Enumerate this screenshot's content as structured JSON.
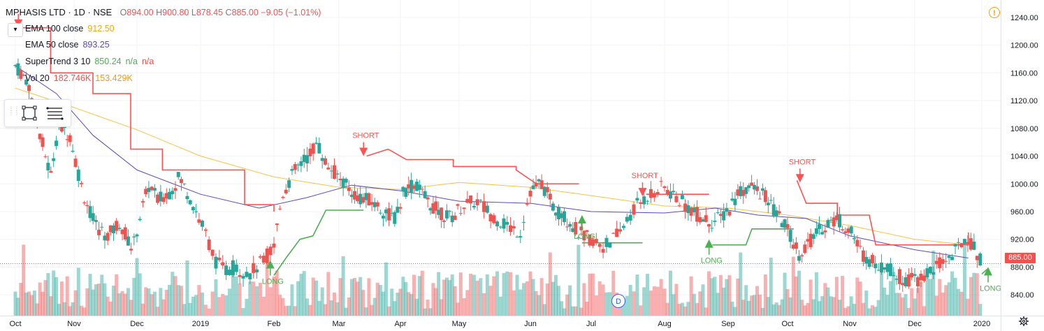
{
  "header": {
    "symbol": "MPHASIS LTD · 1D · NSE",
    "ohlc": [
      {
        "label": "O",
        "value": "894.00"
      },
      {
        "label": "H",
        "value": "900.80"
      },
      {
        "label": "L",
        "value": "878.45"
      },
      {
        "label": "C",
        "value": "885.00"
      }
    ],
    "change": "−9.05 (−1.01%)",
    "collapse_glyph": "▾",
    "warning_glyph": "!"
  },
  "indicators": [
    {
      "name": "EMA 100 close",
      "value": "912.50",
      "color": "#f7c344"
    },
    {
      "name": "EMA 50 close",
      "value": "893.25",
      "color": "#5b4bb7"
    },
    {
      "name": "SuperTrend 3 10",
      "value": "850.24",
      "extra": "n/a",
      "extra2": "n/a",
      "color": "#4caf50",
      "extra_color": "#ef5350"
    },
    {
      "name": "Vol 20",
      "value": "182.746K",
      "extra": "153.429K",
      "color": "#ef5350",
      "extra_color": "#ff9800"
    }
  ],
  "price_tag": "885.00",
  "event_marker": "D",
  "colors": {
    "up": "#26a69a",
    "down": "#ef5350",
    "grid": "#f0f3fa",
    "st_up": "#4caf50",
    "st_down": "#ff5252"
  },
  "chart_data": {
    "type": "candlestick",
    "y_axis": {
      "range": [
        810,
        1265
      ],
      "ticks": [
        "840.00",
        "880.00",
        "920.00",
        "960.00",
        "1000.00",
        "1040.00",
        "1080.00",
        "1120.00",
        "1160.00",
        "1200.00",
        "1240.00"
      ]
    },
    "x_axis": {
      "labels": [
        "Oct",
        "Nov",
        "Dec",
        "2019",
        "Feb",
        "Mar",
        "Apr",
        "May",
        "Jun",
        "Jul",
        "Aug",
        "Sep",
        "Oct",
        "Nov",
        "Dec",
        "2020"
      ]
    },
    "last_close": 885.0,
    "signals": [
      {
        "label": "SHORT",
        "type": "short",
        "month": 5.4,
        "price": 1040
      },
      {
        "label": "SHORT",
        "type": "short",
        "month": 9.7,
        "price": 982
      },
      {
        "label": "SHORT",
        "type": "short",
        "month": 12.2,
        "price": 1002
      },
      {
        "label": "LONG",
        "type": "long",
        "month": 3.95,
        "price": 890
      },
      {
        "label": "LONG",
        "type": "long",
        "month": 8.85,
        "price": 955
      },
      {
        "label": "LONG",
        "type": "long",
        "month": 10.7,
        "price": 920
      },
      {
        "label": "LONG",
        "type": "long",
        "month": 15.1,
        "price": 880
      },
      {
        "label": "SHORT",
        "type": "short",
        "month": 0.05,
        "price": 1225
      }
    ],
    "close_path": [
      [
        0.0,
        1170
      ],
      [
        0.3,
        1150
      ],
      [
        0.6,
        1080
      ],
      [
        0.9,
        1010
      ],
      [
        1.1,
        1085
      ],
      [
        1.4,
        1070
      ],
      [
        1.7,
        990
      ],
      [
        2.0,
        940
      ],
      [
        2.3,
        925
      ],
      [
        2.6,
        945
      ],
      [
        2.9,
        905
      ],
      [
        3.1,
        960
      ],
      [
        3.3,
        1000
      ],
      [
        3.5,
        975
      ],
      [
        3.8,
        990
      ],
      [
        4.0,
        1010
      ],
      [
        4.3,
        975
      ],
      [
        4.6,
        930
      ],
      [
        4.8,
        890
      ],
      [
        5.0,
        875
      ],
      [
        5.2,
        880
      ],
      [
        5.5,
        870
      ],
      [
        5.8,
        890
      ],
      [
        6.0,
        910
      ],
      [
        6.2,
        985
      ],
      [
        6.5,
        1020
      ],
      [
        6.8,
        1040
      ],
      [
        7.0,
        1060
      ],
      [
        7.2,
        1030
      ],
      [
        7.5,
        1010
      ],
      [
        7.8,
        990
      ],
      [
        8.0,
        980
      ],
      [
        8.3,
        975
      ],
      [
        8.6,
        960
      ],
      [
        8.9,
        950
      ],
      [
        9.1,
        990
      ],
      [
        9.4,
        1000
      ],
      [
        9.7,
        975
      ],
      [
        10.0,
        960
      ],
      [
        10.3,
        950
      ],
      [
        10.6,
        970
      ],
      [
        10.9,
        975
      ],
      [
        11.2,
        955
      ],
      [
        11.5,
        940
      ],
      [
        11.8,
        930
      ],
      [
        12.0,
        990
      ],
      [
        12.3,
        1000
      ],
      [
        12.6,
        965
      ],
      [
        12.9,
        950
      ],
      [
        13.2,
        930
      ],
      [
        13.5,
        920
      ],
      [
        13.8,
        910
      ],
      [
        14.1,
        930
      ],
      [
        14.4,
        965
      ],
      [
        14.7,
        985
      ],
      [
        15.0,
        995
      ],
      [
        15.3,
        980
      ],
      [
        15.6,
        965
      ],
      [
        15.9,
        950
      ],
      [
        16.2,
        945
      ],
      [
        16.5,
        960
      ],
      [
        16.8,
        990
      ],
      [
        17.1,
        995
      ],
      [
        17.4,
        985
      ],
      [
        17.7,
        960
      ],
      [
        18.0,
        935
      ],
      [
        18.3,
        900
      ],
      [
        18.6,
        920
      ],
      [
        18.9,
        940
      ],
      [
        19.2,
        950
      ],
      [
        19.5,
        935
      ],
      [
        19.8,
        900
      ],
      [
        20.1,
        885
      ],
      [
        20.4,
        880
      ],
      [
        20.7,
        865
      ],
      [
        21.0,
        860
      ],
      [
        21.3,
        870
      ],
      [
        21.6,
        885
      ],
      [
        21.9,
        900
      ],
      [
        22.2,
        925
      ],
      [
        22.4,
        900
      ],
      [
        22.6,
        885
      ]
    ],
    "supertrend": [
      {
        "color": "down",
        "points": [
          [
            0.0,
            1225
          ],
          [
            0.6,
            1225
          ],
          [
            0.6,
            1160
          ],
          [
            1.3,
            1160
          ],
          [
            1.3,
            1130
          ],
          [
            1.9,
            1130
          ],
          [
            1.9,
            1050
          ],
          [
            2.4,
            1050
          ],
          [
            2.4,
            1020
          ],
          [
            3.6,
            1020
          ],
          [
            3.6,
            970
          ],
          [
            4.0,
            970
          ],
          [
            4.0,
            960
          ]
        ]
      },
      {
        "color": "up",
        "points": [
          [
            4.0,
            868
          ],
          [
            4.2,
            895
          ],
          [
            4.4,
            920
          ],
          [
            4.6,
            925
          ],
          [
            4.8,
            962
          ],
          [
            5.4,
            962
          ],
          [
            5.4,
            962
          ]
        ]
      },
      {
        "color": "down",
        "points": [
          [
            5.45,
            1040
          ],
          [
            5.8,
            1050
          ],
          [
            6.1,
            1035
          ],
          [
            6.9,
            1035
          ],
          [
            6.9,
            1025
          ],
          [
            7.8,
            1025
          ],
          [
            7.8,
            1020
          ],
          [
            8.1,
            1000
          ],
          [
            8.8,
            1000
          ]
        ]
      },
      {
        "color": "up",
        "points": [
          [
            8.85,
            915
          ],
          [
            9.7,
            915
          ]
        ]
      },
      {
        "color": "down",
        "points": [
          [
            9.75,
            985
          ],
          [
            10.7,
            985
          ]
        ]
      },
      {
        "color": "up",
        "points": [
          [
            10.75,
            912
          ],
          [
            11.3,
            912
          ],
          [
            11.4,
            935
          ],
          [
            12.1,
            935
          ],
          [
            12.1,
            935
          ]
        ]
      },
      {
        "color": "down",
        "points": [
          [
            12.15,
            1005
          ],
          [
            12.3,
            972
          ],
          [
            12.8,
            972
          ],
          [
            12.8,
            955
          ],
          [
            13.3,
            955
          ],
          [
            13.4,
            912
          ],
          [
            14.8,
            912
          ],
          [
            14.8,
            930
          ]
        ]
      },
      {
        "color": "up",
        "points": [
          [
            15.0,
            870
          ],
          [
            15.1,
            878
          ]
        ]
      }
    ],
    "ema100": [
      [
        0.0,
        1138
      ],
      [
        1.0,
        1110
      ],
      [
        2.0,
        1078
      ],
      [
        3.0,
        1040
      ],
      [
        4.0,
        1010
      ],
      [
        5.0,
        995
      ],
      [
        6.0,
        992
      ],
      [
        7.0,
        1002
      ],
      [
        8.0,
        995
      ],
      [
        9.0,
        983
      ],
      [
        10.0,
        968
      ],
      [
        11.0,
        965
      ],
      [
        12.0,
        955
      ],
      [
        13.0,
        940
      ],
      [
        14.0,
        920
      ],
      [
        14.8,
        912
      ]
    ],
    "ema50": [
      [
        0.0,
        1170
      ],
      [
        0.7,
        1130
      ],
      [
        1.3,
        1070
      ],
      [
        2.0,
        1020
      ],
      [
        3.0,
        985
      ],
      [
        3.8,
        965
      ],
      [
        4.5,
        980
      ],
      [
        5.2,
        998
      ],
      [
        6.0,
        990
      ],
      [
        7.0,
        975
      ],
      [
        8.0,
        972
      ],
      [
        9.0,
        960
      ],
      [
        10.0,
        958
      ],
      [
        10.8,
        965
      ],
      [
        11.5,
        955
      ],
      [
        12.3,
        950
      ],
      [
        13.0,
        925
      ],
      [
        14.0,
        905
      ],
      [
        14.8,
        893
      ]
    ]
  }
}
